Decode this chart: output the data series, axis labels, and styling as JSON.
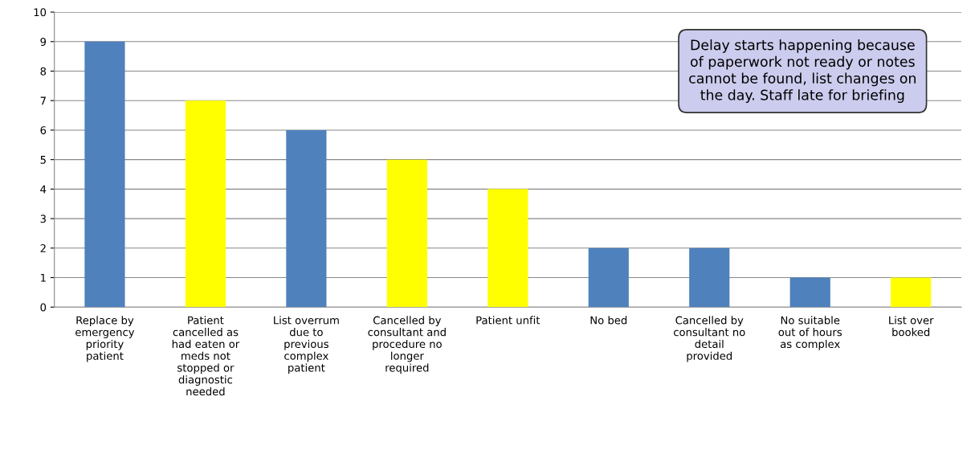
{
  "chart_data": {
    "type": "bar",
    "categories": [
      "Replace by\nemergency\npriority\npatient",
      "Patient\ncancelled as\nhad eaten or\nmeds not\nstopped or\ndiagnostic\nneeded",
      "List overrum\ndue to\nprevious\ncomplex\npatient",
      "Cancelled by\nconsultant and\nprocedure no\nlonger\nrequired",
      "Patient unfit",
      "No bed",
      "Cancelled by\nconsultant no\ndetail\nprovided",
      "No suitable\nout of hours\nas complex",
      "List over\nbooked"
    ],
    "values": [
      9,
      7,
      6,
      5,
      4,
      2,
      2,
      1,
      1
    ],
    "colors": [
      "#4f81bd",
      "#ffff00",
      "#4f81bd",
      "#ffff00",
      "#ffff00",
      "#4f81bd",
      "#4f81bd",
      "#4f81bd",
      "#ffff00"
    ],
    "ylim": [
      0,
      10
    ],
    "yticks": [
      0,
      1,
      2,
      3,
      4,
      5,
      6,
      7,
      8,
      9,
      10
    ],
    "grid": "y",
    "annotations": [
      "Delay starts happening because\nof paperwork not ready or notes\ncannot be found, list changes on\nthe day. Staff late for briefing"
    ]
  }
}
